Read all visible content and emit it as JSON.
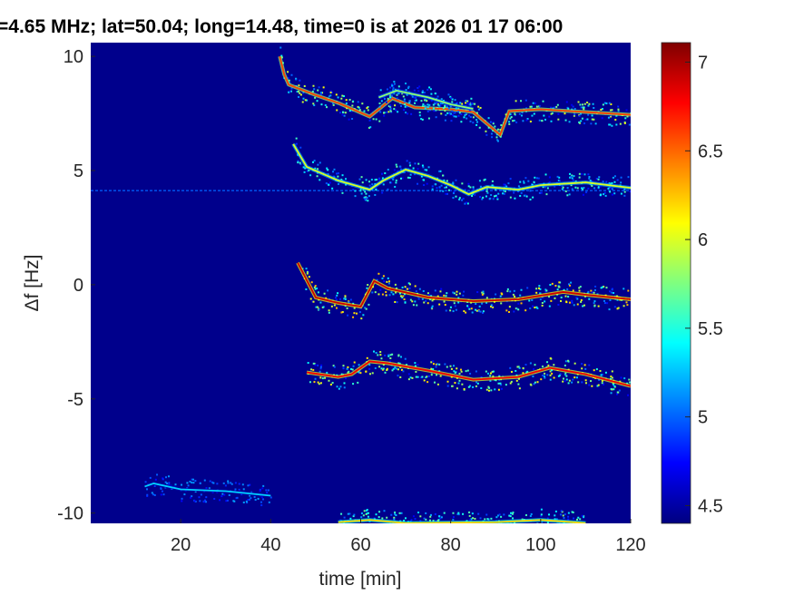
{
  "chart_data": {
    "type": "heatmap",
    "title": "=4.65 MHz;  lat=50.04; long=14.48, time=0 is at 2026 01 17 06:00",
    "xlabel": "time [min]",
    "ylabel": "Δf [Hz]",
    "xlim": [
      0,
      120
    ],
    "ylim": [
      -10.45,
      10.6
    ],
    "xticks": [
      "20",
      "40",
      "60",
      "80",
      "100",
      "120"
    ],
    "yticks": [
      "10",
      "5",
      "0",
      "-5",
      "-10"
    ],
    "colorbar": {
      "colormap": "jet",
      "clim": [
        4.4,
        7.11
      ],
      "ticks": [
        "4.5",
        "5",
        "5.5",
        "6",
        "6.5",
        "7"
      ],
      "background_value": 4.4
    },
    "horizontal_line": {
      "freq": 4.12,
      "value": 5.0
    },
    "traces": [
      {
        "name": "trace-8hz",
        "value": 6.6,
        "points": [
          [
            42,
            10.0
          ],
          [
            43,
            9.2
          ],
          [
            44,
            8.76
          ],
          [
            50,
            8.3
          ],
          [
            55,
            7.96
          ],
          [
            62,
            7.36
          ],
          [
            67,
            8.16
          ],
          [
            72,
            7.76
          ],
          [
            80,
            7.68
          ],
          [
            85,
            7.56
          ],
          [
            91,
            6.56
          ],
          [
            93,
            7.6
          ],
          [
            100,
            7.68
          ],
          [
            110,
            7.56
          ],
          [
            120,
            7.44
          ]
        ]
      },
      {
        "name": "trace-8hz-upper",
        "value": 5.8,
        "points": [
          [
            64,
            8.2
          ],
          [
            68,
            8.5
          ],
          [
            75,
            8.2
          ],
          [
            80,
            7.9
          ],
          [
            85,
            7.7
          ]
        ]
      },
      {
        "name": "trace-4hz",
        "value": 6.0,
        "points": [
          [
            45,
            6.16
          ],
          [
            48,
            5.16
          ],
          [
            55,
            4.56
          ],
          [
            62,
            4.16
          ],
          [
            65,
            4.56
          ],
          [
            70,
            5.04
          ],
          [
            75,
            4.76
          ],
          [
            80,
            4.36
          ],
          [
            84,
            3.96
          ],
          [
            88,
            4.28
          ],
          [
            95,
            4.16
          ],
          [
            100,
            4.36
          ],
          [
            110,
            4.48
          ],
          [
            120,
            4.24
          ]
        ]
      },
      {
        "name": "trace-0hz",
        "value": 6.9,
        "points": [
          [
            46,
            0.96
          ],
          [
            50,
            -0.56
          ],
          [
            55,
            -0.8
          ],
          [
            60,
            -0.96
          ],
          [
            63,
            0.16
          ],
          [
            66,
            -0.16
          ],
          [
            75,
            -0.56
          ],
          [
            85,
            -0.72
          ],
          [
            95,
            -0.64
          ],
          [
            105,
            -0.32
          ],
          [
            110,
            -0.44
          ],
          [
            120,
            -0.64
          ]
        ]
      },
      {
        "name": "trace-minus4hz",
        "value": 6.8,
        "points": [
          [
            48,
            -3.84
          ],
          [
            55,
            -4.04
          ],
          [
            58,
            -3.92
          ],
          [
            62,
            -3.36
          ],
          [
            66,
            -3.44
          ],
          [
            75,
            -3.76
          ],
          [
            85,
            -4.16
          ],
          [
            95,
            -4.04
          ],
          [
            102,
            -3.64
          ],
          [
            110,
            -3.92
          ],
          [
            120,
            -4.44
          ]
        ]
      },
      {
        "name": "trace-minus9hz",
        "value": 5.3,
        "points": [
          [
            12,
            -8.84
          ],
          [
            14,
            -8.7
          ],
          [
            20,
            -8.96
          ],
          [
            30,
            -9.04
          ],
          [
            40,
            -9.24
          ]
        ]
      },
      {
        "name": "trace-minus10hz",
        "value": 6.2,
        "points": [
          [
            55,
            -10.4
          ],
          [
            62,
            -10.3
          ],
          [
            70,
            -10.44
          ],
          [
            90,
            -10.4
          ],
          [
            100,
            -10.3
          ],
          [
            110,
            -10.44
          ]
        ]
      }
    ]
  }
}
